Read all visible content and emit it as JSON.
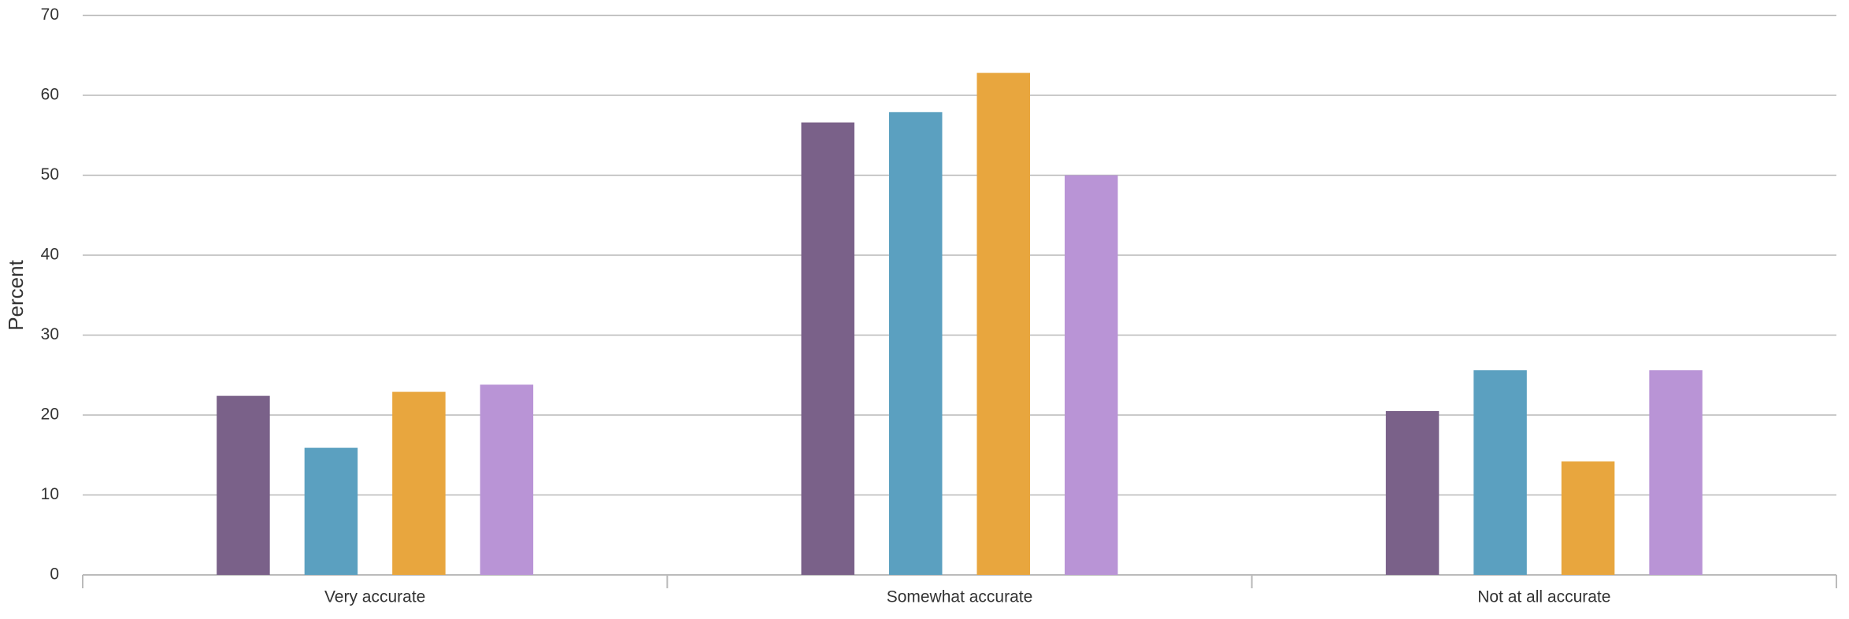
{
  "chart_data": {
    "type": "bar",
    "y_axis_label": "Percent",
    "categories": [
      "Very accurate",
      "Somewhat accurate",
      "Not at all accurate"
    ],
    "series": [
      {
        "color": "#7a6189",
        "values": [
          22.4,
          56.6,
          20.5
        ]
      },
      {
        "color": "#5ba0c0",
        "values": [
          15.9,
          57.9,
          25.6
        ]
      },
      {
        "color": "#e8a63e",
        "values": [
          22.9,
          62.8,
          14.2
        ]
      },
      {
        "color": "#b994d6",
        "values": [
          23.8,
          50,
          25.6
        ]
      }
    ],
    "ylim": [
      0,
      70
    ],
    "yticks": [
      0,
      10,
      20,
      30,
      40,
      50,
      60,
      70
    ],
    "grid": true
  }
}
